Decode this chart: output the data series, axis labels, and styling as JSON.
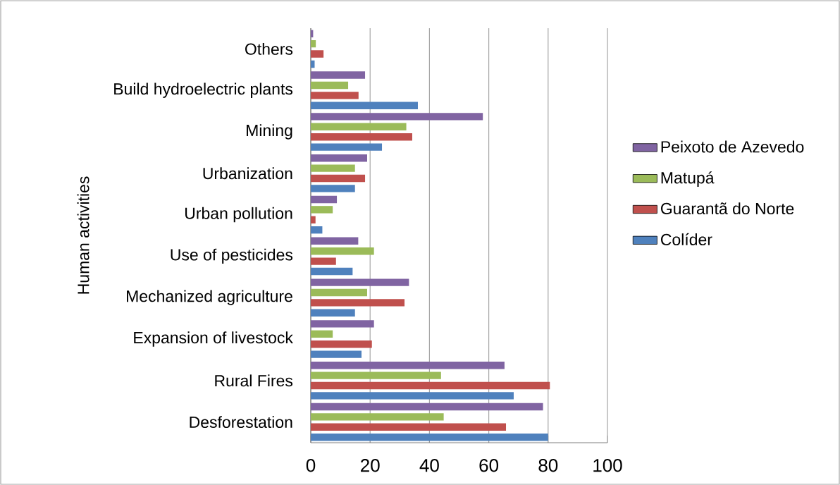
{
  "chart_data": {
    "type": "bar",
    "orientation": "horizontal",
    "ylabel": "Human activities",
    "categories": [
      "Others",
      "Build hydroelectric plants",
      "Mining",
      "Urbanization",
      "Urban pollution",
      "Use of pesticides",
      "Mechanized agriculture",
      "Expansion of livestock",
      "Rural Fires",
      "Desforestation"
    ],
    "series": [
      {
        "name": "Peixoto de Azevedo",
        "color": "#8064a2",
        "values": [
          0.8,
          18.3,
          58,
          19.0,
          8.8,
          16.0,
          33.1,
          21.3,
          65.3,
          78.3
        ]
      },
      {
        "name": "Matupá",
        "color": "#9bbb59",
        "values": [
          1.7,
          12.6,
          32.2,
          14.9,
          7.4,
          21.3,
          19.0,
          7.4,
          43.9,
          44.8
        ]
      },
      {
        "name": "Guarantã do Norte",
        "color": "#c0504d",
        "values": [
          4.3,
          16.1,
          34.2,
          18.3,
          1.6,
          8.5,
          31.6,
          20.6,
          80.6,
          65.8
        ]
      },
      {
        "name": "Colíder",
        "color": "#4f81bd",
        "values": [
          1.3,
          36.1,
          24.0,
          14.9,
          3.9,
          14.1,
          14.9,
          17.1,
          68.4,
          80.0
        ]
      }
    ],
    "xlim": [
      0,
      100
    ],
    "xticks": [
      0,
      20,
      40,
      60,
      80,
      100
    ],
    "grid": "x",
    "legend": "right"
  }
}
